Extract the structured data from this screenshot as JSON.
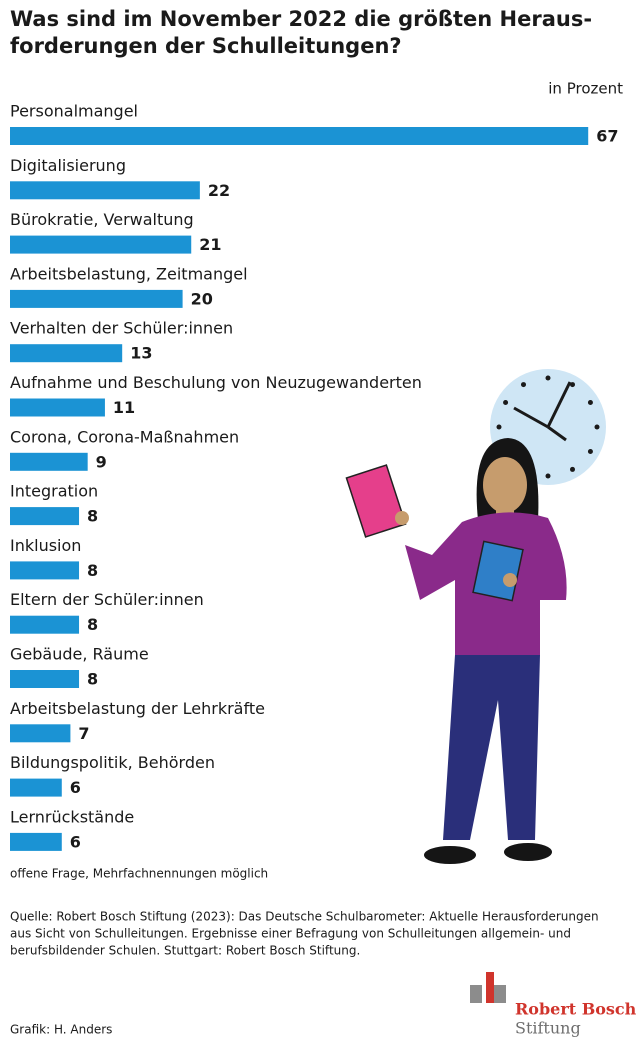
{
  "chart_data": {
    "type": "bar",
    "orientation": "horizontal",
    "title": [
      "Was sind im November 2022 die größten Heraus-",
      "forderungen der Schulleitungen?"
    ],
    "unit": "in Prozent",
    "categories": [
      "Personalmangel",
      "Digitalisierung",
      "Bürokratie, Verwaltung",
      "Arbeitsbelastung, Zeitmangel",
      "Verhalten der Schüler:innen",
      "Aufnahme und Beschulung von Neuzugewanderten",
      "Corona, Corona-Maßnahmen",
      "Integration",
      "Inklusion",
      "Eltern der Schüler:innen",
      "Gebäude, Räume",
      "Arbeitsbelastung der Lehrkräfte",
      "Bildungspolitik, Behörden",
      "Lernrückstände"
    ],
    "values": [
      67,
      22,
      21,
      20,
      13,
      11,
      9,
      8,
      8,
      8,
      8,
      7,
      6,
      6
    ],
    "color": "#1b93d4",
    "note": "offene Frage, Mehrfachnennungen möglich",
    "source": [
      "Quelle: Robert Bosch Stiftung (2023): Das Deutsche Schulbarometer: Aktuelle Herausforderungen",
      "aus Sicht von Schulleitungen. Ergebnisse einer Befragung von Schulleitungen allgemein- und",
      "berufsbildender Schulen. Stuttgart: Robert Bosch Stiftung."
    ],
    "credit": "Grafik: H. Anders",
    "logo": [
      "Robert Bosch",
      "Stiftung"
    ]
  }
}
